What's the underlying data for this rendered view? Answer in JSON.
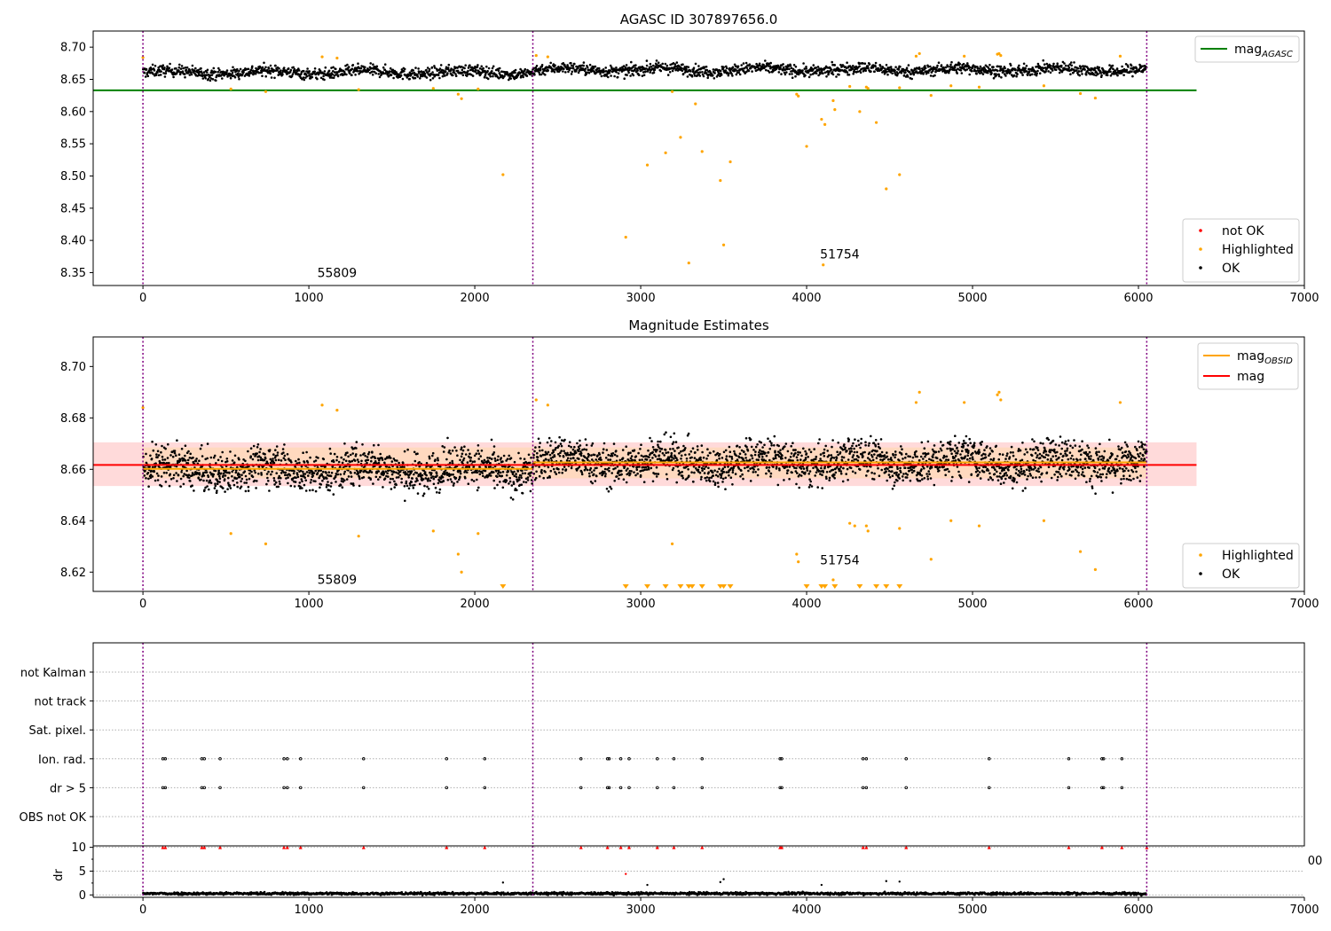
{
  "chart_data": [
    {
      "type": "scatter",
      "title": "AGASC ID 307897656.0",
      "xlabel": "",
      "ylabel": "",
      "xlim": [
        -300,
        7000
      ],
      "ylim": [
        8.33,
        8.725
      ],
      "xticks": [
        0,
        1000,
        2000,
        3000,
        4000,
        5000,
        6000,
        7000
      ],
      "xtick_labels": [
        "0",
        "1000",
        "2000",
        "3000",
        "4000",
        "5000",
        "6000",
        "7000"
      ],
      "yticks": [
        8.35,
        8.4,
        8.45,
        8.5,
        8.55,
        8.6,
        8.65,
        8.7
      ],
      "ytick_labels": [
        "8.35",
        "8.40",
        "8.45",
        "8.50",
        "8.55",
        "8.60",
        "8.65",
        "8.70"
      ],
      "vlines": [
        0,
        2350,
        6050
      ],
      "annotations": [
        {
          "text": "55809",
          "x": 1170,
          "y": 8.343
        },
        {
          "text": "51754",
          "x": 4200,
          "y": 8.372
        }
      ],
      "hline": {
        "name": "mag_AGASC",
        "value": 8.633,
        "x": [
          -300,
          6350
        ],
        "color": "#008000"
      },
      "legend_lines": [
        {
          "label": "mag",
          "sub": "AGASC",
          "color": "#008000"
        }
      ],
      "legend_points": [
        {
          "label": "not OK",
          "color": "#ff0000"
        },
        {
          "label": "Highlighted",
          "color": "#ffa500"
        },
        {
          "label": "OK",
          "color": "#000000"
        }
      ],
      "ok_points": {
        "x_range": [
          0,
          6050
        ],
        "y_center": 8.662,
        "y_spread": 0.008,
        "color": "#000000"
      },
      "highlighted": {
        "color": "#ffa500",
        "x": [
          0,
          530,
          740,
          1080,
          1170,
          1300,
          1750,
          1900,
          1920,
          2020,
          2170,
          2370,
          2440,
          2910,
          3040,
          3150,
          3190,
          3240,
          3290,
          3330,
          3370,
          3480,
          3500,
          3540,
          3940,
          3950,
          4000,
          4090,
          4100,
          4110,
          4160,
          4170,
          4260,
          4320,
          4360,
          4370,
          4420,
          4480,
          4560,
          4560,
          4660,
          4680,
          4750,
          4870,
          4950,
          5040,
          5150,
          5160,
          5170,
          5430,
          5650,
          5740,
          5890
        ],
        "y": [
          8.684,
          8.635,
          8.631,
          8.685,
          8.683,
          8.634,
          8.636,
          8.627,
          8.62,
          8.635,
          8.502,
          8.687,
          8.685,
          8.405,
          8.517,
          8.536,
          8.631,
          8.56,
          8.365,
          8.612,
          8.538,
          8.493,
          8.393,
          8.522,
          8.627,
          8.624,
          8.546,
          8.588,
          8.362,
          8.58,
          8.617,
          8.603,
          8.639,
          8.6,
          8.638,
          8.636,
          8.583,
          8.48,
          8.637,
          8.502,
          8.686,
          8.69,
          8.625,
          8.64,
          8.686,
          8.638,
          8.689,
          8.69,
          8.687,
          8.64,
          8.628,
          8.621,
          8.686
        ]
      }
    },
    {
      "type": "scatter",
      "title": "Magnitude Estimates",
      "xlabel": "",
      "ylabel": "",
      "xlim": [
        -300,
        7000
      ],
      "ylim": [
        8.6125,
        8.7115
      ],
      "xticks": [
        0,
        1000,
        2000,
        3000,
        4000,
        5000,
        6000,
        7000
      ],
      "xtick_labels": [
        "0",
        "1000",
        "2000",
        "3000",
        "4000",
        "5000",
        "6000",
        "7000"
      ],
      "yticks": [
        8.62,
        8.64,
        8.66,
        8.68,
        8.7
      ],
      "ytick_labels": [
        "8.62",
        "8.64",
        "8.66",
        "8.68",
        "8.70"
      ],
      "vlines": [
        0,
        2350,
        6050
      ],
      "annotations": [
        {
          "text": "55809",
          "x": 1170,
          "y": 8.6155
        },
        {
          "text": "51754",
          "x": 4200,
          "y": 8.623
        }
      ],
      "band": {
        "y": [
          8.6535,
          8.6705
        ],
        "x": [
          -300,
          6350
        ],
        "color": "#ffdada"
      },
      "obsid_band": {
        "y": [
          8.6565,
          8.6685
        ],
        "x": [
          0,
          6050
        ],
        "color": "#ffd9b3"
      },
      "mag_line": {
        "name": "mag",
        "value": 8.6617,
        "x": [
          -300,
          6350
        ],
        "color": "#ff0000"
      },
      "mag_obsid": {
        "name": "mag_OBSID",
        "segments": [
          {
            "x": [
              0,
              2350
            ],
            "value": 8.6602
          },
          {
            "x": [
              2350,
              6050
            ],
            "value": 8.6627
          }
        ],
        "color": "#ffa500"
      },
      "legend_lines": [
        {
          "label": "mag",
          "sub": "OBSID",
          "color": "#ffa500"
        },
        {
          "label": "mag",
          "sub": "",
          "color": "#ff0000"
        }
      ],
      "legend_points": [
        {
          "label": "Highlighted",
          "color": "#ffa500"
        },
        {
          "label": "OK",
          "color": "#000000"
        }
      ],
      "ok_points": {
        "x_range": [
          0,
          6050
        ],
        "y_center": 8.661,
        "y_spread": 0.007,
        "color": "#000000"
      },
      "highlighted": {
        "color": "#ffa500",
        "x": [
          0,
          530,
          740,
          1080,
          1170,
          1300,
          1750,
          1900,
          1920,
          2020,
          2370,
          2440,
          3190,
          3940,
          3950,
          4160,
          4260,
          4290,
          4360,
          4370,
          4560,
          4660,
          4680,
          4750,
          4870,
          4950,
          5040,
          5150,
          5160,
          5170,
          5430,
          5650,
          5740,
          5890
        ],
        "y": [
          8.684,
          8.635,
          8.631,
          8.685,
          8.683,
          8.634,
          8.636,
          8.627,
          8.62,
          8.635,
          8.687,
          8.685,
          8.631,
          8.627,
          8.624,
          8.617,
          8.639,
          8.638,
          8.638,
          8.636,
          8.637,
          8.686,
          8.69,
          8.625,
          8.64,
          8.686,
          8.638,
          8.689,
          8.69,
          8.687,
          8.64,
          8.628,
          8.621,
          8.686
        ]
      },
      "offscale_markers": {
        "color": "#ffa500",
        "x": [
          2170,
          2910,
          3040,
          3150,
          3240,
          3290,
          3310,
          3370,
          3480,
          3500,
          3540,
          4000,
          4090,
          4110,
          4170,
          4320,
          4420,
          4480,
          4560
        ]
      }
    },
    {
      "type": "scatter",
      "title": "",
      "xlabel": "",
      "ylabel": "",
      "xlim": [
        -300,
        7000
      ],
      "categories": [
        "not Kalman",
        "not track",
        "Sat. pixel.",
        "Ion. rad.",
        "dr > 5",
        "OBS not OK"
      ],
      "flag_points": {
        "Ion. rad.": [
          120,
          135,
          355,
          370,
          465,
          850,
          870,
          950,
          1330,
          1830,
          2060,
          2640,
          2800,
          2810,
          2880,
          2930,
          3100,
          3200,
          3370,
          3840,
          3850,
          4340,
          4360,
          4600,
          5100,
          5580,
          5780,
          5790,
          5900
        ],
        "dr > 5": [
          120,
          135,
          355,
          370,
          465,
          850,
          870,
          950,
          1330,
          1830,
          2060,
          2640,
          2800,
          2810,
          2880,
          2930,
          3100,
          3200,
          3370,
          3840,
          3850,
          4340,
          4360,
          4600,
          5100,
          5580,
          5780,
          5790,
          5900
        ]
      },
      "vlines": [
        0,
        2350,
        6050
      ]
    },
    {
      "type": "scatter",
      "title": "",
      "xlabel": "",
      "ylabel": "dr",
      "xlim": [
        -300,
        7000
      ],
      "ylim": [
        -0.5,
        10.3
      ],
      "yticks": [
        0,
        5,
        10
      ],
      "ytick_labels": [
        "0",
        "5",
        "10"
      ],
      "stray_label": "00",
      "red_points": {
        "color": "#ff0000",
        "y": 10,
        "x": [
          120,
          135,
          355,
          370,
          465,
          850,
          870,
          950,
          1330,
          1830,
          2060,
          2640,
          2800,
          2880,
          2930,
          3100,
          3200,
          3370,
          3840,
          3850,
          4340,
          4360,
          4600,
          5100,
          5580,
          5780,
          5900,
          6050
        ]
      },
      "outliers": [
        {
          "x": 2170,
          "y": 2.6
        },
        {
          "x": 2910,
          "y": 4.4
        },
        {
          "x": 3040,
          "y": 2.1
        },
        {
          "x": 3480,
          "y": 2.7
        },
        {
          "x": 3500,
          "y": 3.3
        },
        {
          "x": 4090,
          "y": 2.1
        },
        {
          "x": 4480,
          "y": 2.9
        },
        {
          "x": 4560,
          "y": 2.8
        }
      ],
      "ok_points": {
        "x_range": [
          0,
          6050
        ],
        "y_center": 0.3,
        "y_spread": 0.25,
        "color": "#000000"
      },
      "vlines": [
        0,
        2350,
        6050
      ]
    }
  ]
}
